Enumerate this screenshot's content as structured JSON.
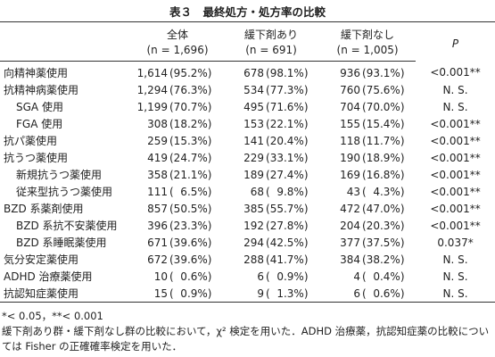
{
  "header": {
    "title": "表３　最終処方・処方率の比較"
  },
  "table": {
    "columns": [
      {
        "label": "全体",
        "n": "(n = 1,696)"
      },
      {
        "label": "緩下剤あり",
        "n": "(n = 691)"
      },
      {
        "label": "緩下剤なし",
        "n": "(n = 1,005)"
      },
      {
        "label": "P"
      }
    ],
    "rows": [
      [
        "向精神薬使用",
        "1,614",
        "(95.2%)",
        "678",
        "(98.1%)",
        "936",
        "(93.1%)",
        "<0.001**"
      ],
      [
        "抗精神病薬使用",
        "1,294",
        "(76.3%)",
        "534",
        "(77.3%)",
        "760",
        "(75.6%)",
        "N. S."
      ],
      [
        "SGA 使用",
        "1,199",
        "(70.7%)",
        "495",
        "(71.6%)",
        "704",
        "(70.0%)",
        "N. S."
      ],
      [
        "FGA 使用",
        "308",
        "(18.2%)",
        "153",
        "(22.1%)",
        "155",
        "(15.4%)",
        "<0.001**"
      ],
      [
        "抗パ薬使用",
        "259",
        "(15.3%)",
        "141",
        "(20.4%)",
        "118",
        "(11.7%)",
        "<0.001**"
      ],
      [
        "抗うつ薬使用",
        "419",
        "(24.7%)",
        "229",
        "(33.1%)",
        "190",
        "(18.9%)",
        "<0.001**"
      ],
      [
        "新規抗うつ薬使用",
        "358",
        "(21.1%)",
        "189",
        "(27.4%)",
        "169",
        "(16.8%)",
        "<0.001**"
      ],
      [
        "従来型抗うつ薬使用",
        "111",
        "(  6.5%)",
        "68",
        "(  9.8%)",
        "43",
        "(  4.3%)",
        "<0.001**"
      ],
      [
        "BZD 系薬剤使用",
        "857",
        "(50.5%)",
        "385",
        "(55.7%)",
        "472",
        "(47.0%)",
        "<0.001**"
      ],
      [
        "BZD 系抗不安薬使用",
        "396",
        "(23.3%)",
        "192",
        "(27.8%)",
        "204",
        "(20.3%)",
        "<0.001**"
      ],
      [
        "BZD 系睡眠薬使用",
        "671",
        "(39.6%)",
        "294",
        "(42.5%)",
        "377",
        "(37.5%)",
        "0.037*"
      ],
      [
        "気分安定薬使用",
        "672",
        "(39.6%)",
        "288",
        "(41.7%)",
        "384",
        "(38.2%)",
        "N. S."
      ],
      [
        "ADHD 治療薬使用",
        "10",
        "(  0.6%)",
        "6",
        "(  0.9%)",
        "4",
        "(  0.4%)",
        "N. S."
      ],
      [
        "抗認知症薬使用",
        "15",
        "(  0.9%)",
        "9",
        "(  1.3%)",
        "6",
        "(  0.6%)",
        "N. S."
      ]
    ]
  },
  "footnotes": [
    "*< 0.05，**< 0.001",
    "緩下剤あり群・緩下剤なし群の比較において，χ² 検定を用いた．ADHD 治療薬，抗認知症薬の比較については Fisher の正確確率検定を用いた．"
  ]
}
